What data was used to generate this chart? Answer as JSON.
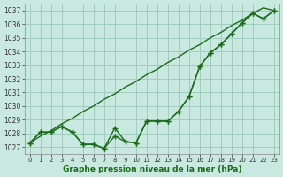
{
  "xlabel": "Graphe pression niveau de la mer (hPa)",
  "x_ticks": [
    0,
    1,
    2,
    3,
    4,
    5,
    6,
    7,
    8,
    9,
    10,
    11,
    12,
    13,
    14,
    15,
    16,
    17,
    18,
    19,
    20,
    21,
    22,
    23
  ],
  "ylim": [
    1026.5,
    1037.5
  ],
  "yticks": [
    1027,
    1028,
    1029,
    1030,
    1031,
    1032,
    1033,
    1034,
    1035,
    1036,
    1037
  ],
  "bg_color": "#c8e8e0",
  "grid_color": "#a0ccc0",
  "line_color": "#1a6b1a",
  "jagged": [
    1027.3,
    1028.1,
    1028.1,
    1028.5,
    1028.1,
    1027.2,
    1027.2,
    1026.9,
    1028.4,
    1027.4,
    1027.3,
    1028.9,
    1028.9,
    1028.9,
    1029.6,
    1030.7,
    1032.9,
    1033.9,
    1034.5,
    1035.3,
    1036.1,
    1036.8,
    1036.4,
    1037.0
  ],
  "smooth": [
    1027.3,
    1027.8,
    1028.2,
    1028.7,
    1029.1,
    1029.6,
    1030.0,
    1030.5,
    1030.9,
    1031.4,
    1031.8,
    1032.3,
    1032.7,
    1033.2,
    1033.6,
    1034.1,
    1034.5,
    1035.0,
    1035.4,
    1035.9,
    1036.3,
    1036.8,
    1037.2,
    1037.0
  ],
  "jagged2": [
    1027.3,
    1028.1,
    1028.1,
    1028.5,
    1028.1,
    1027.2,
    1027.2,
    1026.9,
    1027.8,
    1027.4,
    1027.3,
    1028.9,
    1028.9,
    1028.9,
    1029.6,
    1030.7,
    1032.9,
    1033.9,
    1034.5,
    1035.3,
    1036.1,
    1036.8,
    1036.4,
    1037.0
  ]
}
